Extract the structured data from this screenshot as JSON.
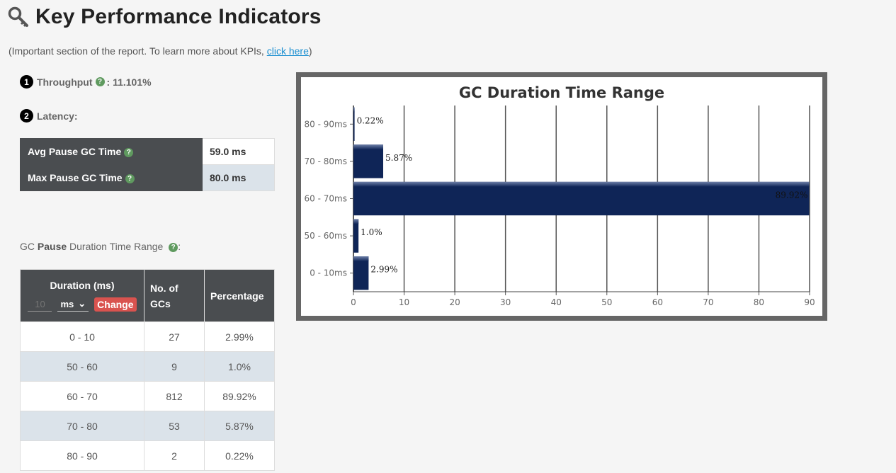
{
  "header": {
    "title": "Key Performance Indicators",
    "subtitle_prefix": "(Important section of the report. To learn more about KPIs, ",
    "subtitle_link": "click here",
    "subtitle_suffix": ")"
  },
  "throughput": {
    "badge": "1",
    "label": "Throughput",
    "value": ": 11.101%"
  },
  "latency": {
    "badge": "2",
    "label": "Latency:",
    "rows": [
      {
        "label": "Avg Pause GC Time",
        "value": "59.0 ms"
      },
      {
        "label": "Max Pause GC Time",
        "value": "80.0 ms"
      }
    ]
  },
  "range_section": {
    "caption_prefix": "GC ",
    "caption_bold": "Pause",
    "caption_suffix": " Duration Time Range",
    "caption_end": ":",
    "header_duration": "Duration (ms)",
    "header_count_line1": "No. of",
    "header_count_line2": "GCs",
    "header_percentage": "Percentage",
    "input_placeholder": "10",
    "unit_selected": "ms",
    "change_label": "Change",
    "rows": [
      {
        "range": "0 - 10",
        "count": "27",
        "percent": "2.99%"
      },
      {
        "range": "50 - 60",
        "count": "9",
        "percent": "1.0%"
      },
      {
        "range": "60 - 70",
        "count": "812",
        "percent": "89.92%"
      },
      {
        "range": "70 - 80",
        "count": "53",
        "percent": "5.87%"
      },
      {
        "range": "80 - 90",
        "count": "2",
        "percent": "0.22%"
      }
    ]
  },
  "chart_data": {
    "type": "bar",
    "orientation": "horizontal",
    "title": "GC Duration Time Range",
    "categories": [
      "0 - 10ms",
      "50 - 60ms",
      "60 - 70ms",
      "70 - 80ms",
      "80 - 90ms"
    ],
    "values": [
      2.99,
      1.0,
      89.92,
      5.87,
      0.22
    ],
    "data_labels": [
      "2.99%",
      "1.0%",
      "89.92%",
      "5.87%",
      "0.22%"
    ],
    "xlim": [
      0,
      90
    ],
    "xticks": [
      0,
      10,
      20,
      30,
      40,
      50,
      60,
      70,
      80,
      90
    ],
    "grid": true,
    "bar_color": "#0f2557"
  },
  "colors": {
    "header_dark": "#4a4d50",
    "row_alt": "#dbe3ea",
    "link": "#1a8fd1",
    "change_button": "#d9534f",
    "help_icon": "#5f9a5f"
  }
}
